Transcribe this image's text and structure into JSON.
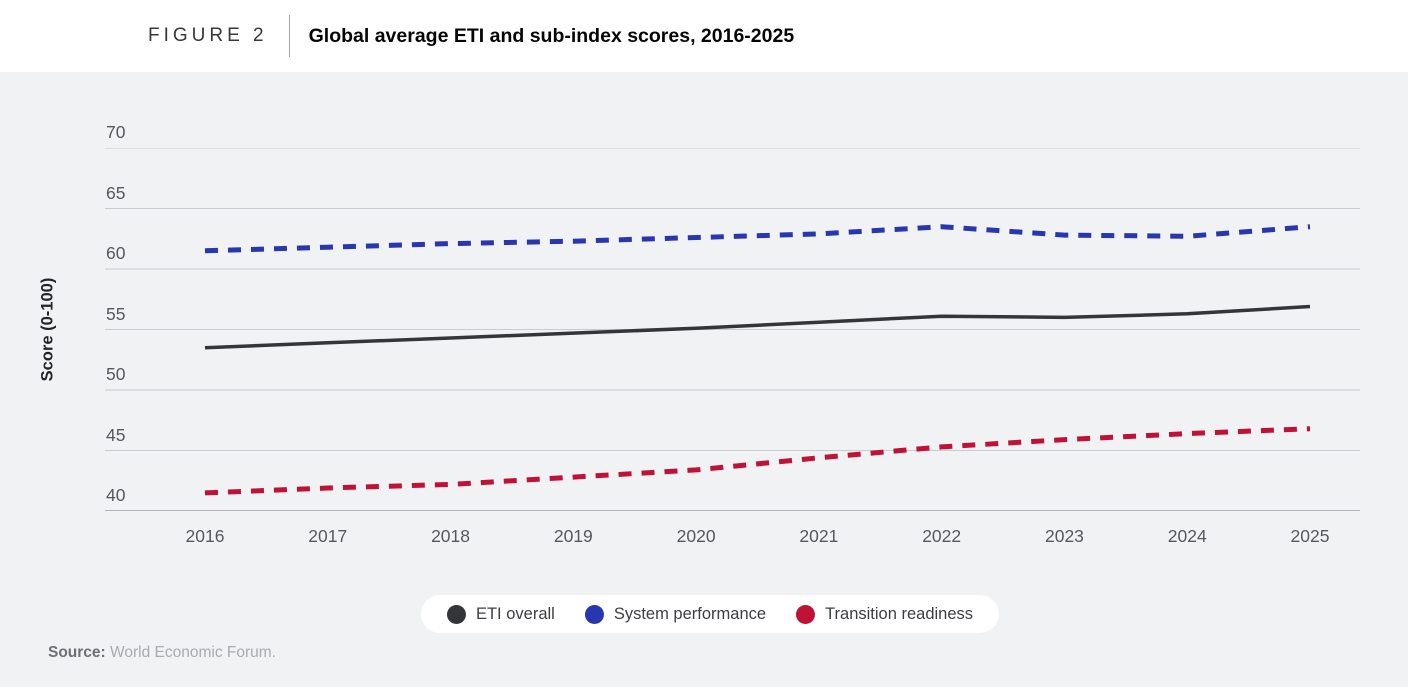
{
  "figure": {
    "label": "FIGURE 2",
    "title": "Global average ETI and sub-index scores, 2016-2025"
  },
  "source": {
    "label": "Source:",
    "text": "World Economic Forum."
  },
  "style": {
    "panel_background": "#f1f2f4",
    "grid_color": "#c9cbd1",
    "axis_line_color": "#9b9da4",
    "tick_label_color": "#56585d",
    "legend_background": "#ffffff"
  },
  "chart_data": {
    "type": "line",
    "title": "Global average ETI and sub-index scores, 2016-2025",
    "xlabel": "",
    "ylabel": "Score (0-100)",
    "ylim": [
      40,
      70
    ],
    "ytick_step": 5,
    "grid": true,
    "legend_position": "bottom-center",
    "categories": [
      "2016",
      "2017",
      "2018",
      "2019",
      "2020",
      "2021",
      "2022",
      "2023",
      "2024",
      "2025"
    ],
    "series": [
      {
        "name": "ETI overall",
        "color": "#333538",
        "line_style": "solid",
        "values": [
          53.5,
          53.9,
          54.3,
          54.7,
          55.1,
          55.6,
          56.1,
          56.0,
          56.3,
          56.9
        ]
      },
      {
        "name": "System performance",
        "color": "#2836b0",
        "line_style": "dashed",
        "values": [
          61.5,
          61.8,
          62.1,
          62.3,
          62.6,
          62.9,
          63.5,
          62.8,
          62.7,
          63.5
        ]
      },
      {
        "name": "Transition readiness",
        "color": "#c01236",
        "line_style": "dashed",
        "values": [
          41.5,
          41.9,
          42.2,
          42.8,
          43.4,
          44.4,
          45.3,
          45.9,
          46.4,
          46.8
        ]
      }
    ]
  }
}
